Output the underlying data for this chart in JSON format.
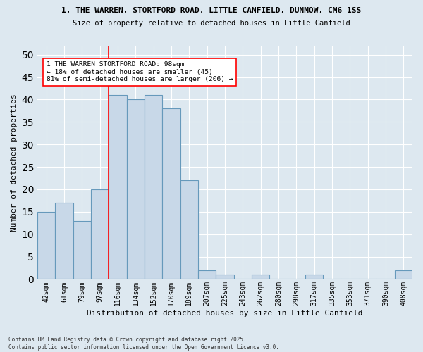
{
  "title1": "1, THE WARREN, STORTFORD ROAD, LITTLE CANFIELD, DUNMOW, CM6 1SS",
  "title2": "Size of property relative to detached houses in Little Canfield",
  "xlabel": "Distribution of detached houses by size in Little Canfield",
  "ylabel": "Number of detached properties",
  "categories": [
    "42sqm",
    "61sqm",
    "79sqm",
    "97sqm",
    "116sqm",
    "134sqm",
    "152sqm",
    "170sqm",
    "189sqm",
    "207sqm",
    "225sqm",
    "243sqm",
    "262sqm",
    "280sqm",
    "298sqm",
    "317sqm",
    "335sqm",
    "353sqm",
    "371sqm",
    "390sqm",
    "408sqm"
  ],
  "values": [
    15,
    17,
    13,
    20,
    41,
    40,
    41,
    38,
    22,
    2,
    1,
    0,
    1,
    0,
    0,
    1,
    0,
    0,
    0,
    0,
    2
  ],
  "bar_color": "#c8d8e8",
  "bar_edge_color": "#6699bb",
  "background_color": "#dde8f0",
  "grid_color": "#ffffff",
  "annotation_text": "1 THE WARREN STORTFORD ROAD: 98sqm\n← 18% of detached houses are smaller (45)\n81% of semi-detached houses are larger (206) →",
  "red_line_x": 3.5,
  "ylim": [
    0,
    52
  ],
  "yticks": [
    0,
    5,
    10,
    15,
    20,
    25,
    30,
    35,
    40,
    45,
    50
  ],
  "footer": "Contains HM Land Registry data © Crown copyright and database right 2025.\nContains public sector information licensed under the Open Government Licence v3.0."
}
